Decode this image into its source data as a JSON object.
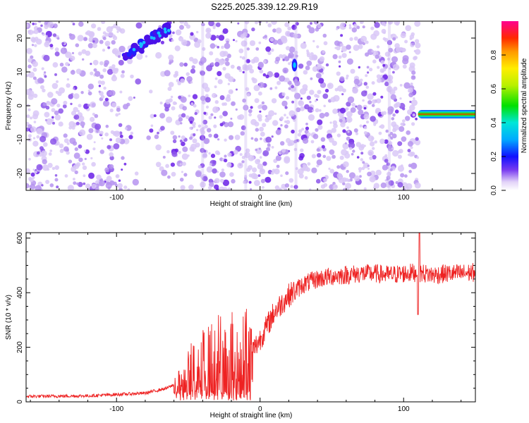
{
  "title": "S225.2025.339.12.29.R19",
  "chart_data": [
    {
      "type": "heatmap",
      "xlabel": "Height of straight line (km)",
      "ylabel": "Frequency (Hz)",
      "xlim": [
        -163,
        150
      ],
      "ylim": [
        -25,
        25
      ],
      "xticks": [
        -100,
        0,
        100
      ],
      "yticks": [
        -20,
        -10,
        0,
        10,
        20
      ],
      "colorbar": {
        "label": "Normalized spectral amplitude",
        "range": [
          0,
          1
        ],
        "ticks": [
          "0.0",
          "0.2",
          "0.4",
          "0.6",
          "0.8"
        ]
      },
      "features": [
        {
          "name": "chirp-streak",
          "x": [
            -95,
            -63
          ],
          "y": [
            14,
            23
          ],
          "amplitude": 0.25
        },
        {
          "name": "blob",
          "x": 24,
          "y": 12,
          "amplitude": 0.25
        },
        {
          "name": "horizontal-band",
          "x": [
            110,
            150
          ],
          "y": -2.5,
          "amplitude": 0.9
        }
      ]
    },
    {
      "type": "line",
      "xlabel": "Height of straight line (km)",
      "ylabel": "SNR (10 * v/v)",
      "xlim": [
        -163,
        150
      ],
      "ylim": [
        0,
        620
      ],
      "xticks": [
        -100,
        0,
        100
      ],
      "yticks": [
        0,
        200,
        400,
        600
      ],
      "series": [
        {
          "name": "SNR",
          "color": "#ee2222",
          "x": [
            -163,
            -120,
            -80,
            -65,
            -55,
            -50,
            -45,
            -40,
            -35,
            -30,
            -25,
            -20,
            -15,
            -10,
            -5,
            0,
            5,
            10,
            15,
            20,
            25,
            30,
            40,
            50,
            60,
            70,
            80,
            90,
            100,
            110,
            120,
            130,
            140,
            150
          ],
          "y": [
            20,
            22,
            32,
            50,
            75,
            100,
            140,
            160,
            150,
            190,
            160,
            190,
            130,
            200,
            190,
            230,
            280,
            330,
            360,
            390,
            410,
            430,
            450,
            460,
            465,
            470,
            470,
            465,
            470,
            475,
            465,
            470,
            470,
            475
          ]
        }
      ]
    }
  ]
}
